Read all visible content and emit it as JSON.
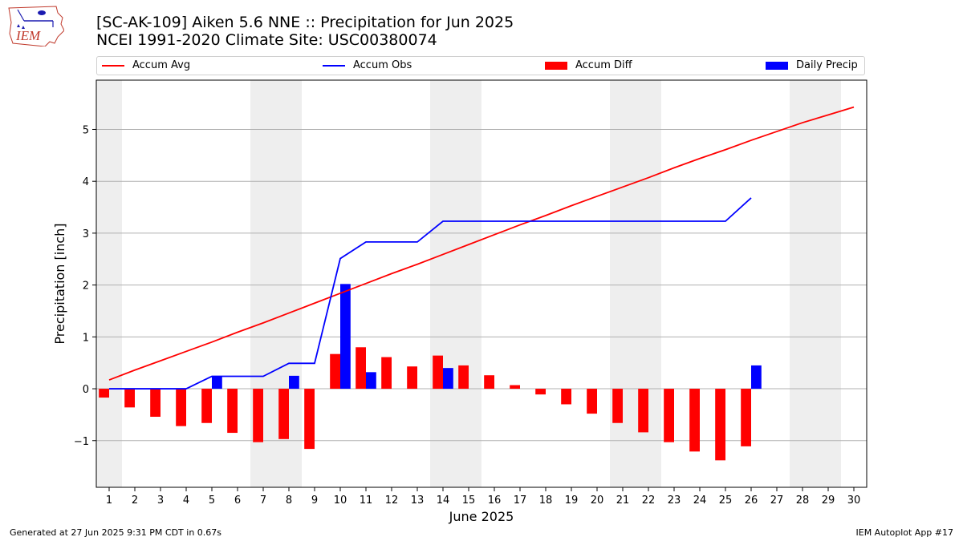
{
  "header": {
    "title_line1": "[SC-AK-109] Aiken 5.6 NNE :: Precipitation for Jun 2025",
    "title_line2": "NCEI 1991-2020 Climate Site: USC00380074"
  },
  "logo": {
    "text": "IEM"
  },
  "legend": {
    "placement": "top, above plot",
    "items": [
      {
        "label": "Accum Avg",
        "color": "#ff0000",
        "kind": "line"
      },
      {
        "label": "Accum Obs",
        "color": "#0000ff",
        "kind": "line"
      },
      {
        "label": "Accum Diff",
        "color": "#ff0000",
        "kind": "bar"
      },
      {
        "label": "Daily Precip",
        "color": "#0000ff",
        "kind": "bar"
      }
    ]
  },
  "footer": {
    "left": "Generated at 27 Jun 2025 9:31 PM CDT in 0.67s",
    "right": "IEM Autoplot App #17"
  },
  "chart_data": {
    "type": "bar",
    "xlabel": "June 2025",
    "ylabel": "Precipitation [inch]",
    "xlim": [
      0.5,
      30.5
    ],
    "ylim": [
      -1.9,
      5.95
    ],
    "grid": "horizontal",
    "weekend_shading_days": [
      1,
      7,
      8,
      14,
      15,
      21,
      22,
      28,
      29
    ],
    "x_ticks": [
      1,
      2,
      3,
      4,
      5,
      6,
      7,
      8,
      9,
      10,
      11,
      12,
      13,
      14,
      15,
      16,
      17,
      18,
      19,
      20,
      21,
      22,
      23,
      24,
      25,
      26,
      27,
      28,
      29,
      30
    ],
    "y_ticks": [
      -1,
      0,
      1,
      2,
      3,
      4,
      5
    ],
    "y_tick_labels": [
      "−1",
      "0",
      "1",
      "2",
      "3",
      "4",
      "5"
    ],
    "days": [
      1,
      2,
      3,
      4,
      5,
      6,
      7,
      8,
      9,
      10,
      11,
      12,
      13,
      14,
      15,
      16,
      17,
      18,
      19,
      20,
      21,
      22,
      23,
      24,
      25,
      26,
      27,
      28,
      29,
      30
    ],
    "series": [
      {
        "name": "Accum Avg",
        "kind": "line",
        "color": "#ff0000",
        "values": [
          0.17,
          0.36,
          0.54,
          0.72,
          0.9,
          1.09,
          1.27,
          1.46,
          1.65,
          1.84,
          2.03,
          2.22,
          2.4,
          2.59,
          2.78,
          2.97,
          3.16,
          3.34,
          3.53,
          3.71,
          3.89,
          4.07,
          4.26,
          4.44,
          4.61,
          4.79,
          4.96,
          5.13,
          5.28,
          5.43
        ]
      },
      {
        "name": "Accum Obs",
        "kind": "line",
        "color": "#0000ff",
        "values": [
          0,
          0,
          0,
          0,
          0.24,
          0.24,
          0.24,
          0.49,
          0.49,
          2.51,
          2.83,
          2.83,
          2.83,
          3.23,
          3.23,
          3.23,
          3.23,
          3.23,
          3.23,
          3.23,
          3.23,
          3.23,
          3.23,
          3.23,
          3.23,
          3.68
        ]
      },
      {
        "name": "Accum Diff",
        "kind": "bar",
        "color": "#ff0000",
        "values": [
          -0.17,
          -0.36,
          -0.54,
          -0.72,
          -0.66,
          -0.85,
          -1.03,
          -0.97,
          -1.16,
          0.67,
          0.8,
          0.61,
          0.43,
          0.64,
          0.45,
          0.26,
          0.07,
          -0.11,
          -0.3,
          -0.48,
          -0.66,
          -0.84,
          -1.03,
          -1.21,
          -1.38,
          -1.11
        ]
      },
      {
        "name": "Daily Precip",
        "kind": "bar",
        "color": "#0000ff",
        "values": [
          0,
          0,
          0,
          0,
          0.24,
          0,
          0,
          0.25,
          0,
          2.02,
          0.32,
          0,
          0,
          0.4,
          0,
          0,
          0,
          0,
          0,
          0,
          0,
          0,
          0,
          0,
          0,
          0.45
        ]
      }
    ]
  }
}
